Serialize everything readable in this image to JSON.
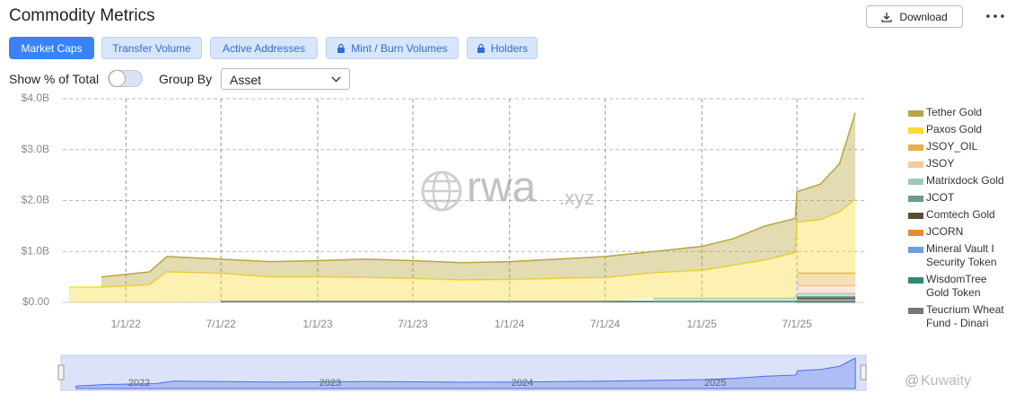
{
  "ui": {
    "title": "Commodity Metrics",
    "download": "Download",
    "tabs": [
      "Market Caps",
      "Transfer Volume",
      "Active Addresses",
      "Mint / Burn Volumes",
      "Holders"
    ],
    "show_pct": "Show % of Total",
    "group_by": "Group By",
    "group_value": "Asset",
    "watermark": [
      "rwa",
      ".xyz"
    ],
    "navigator_labels": [
      "2022",
      "2023",
      "2024",
      "2025"
    ],
    "credit": "Kuwaity"
  },
  "chart_data": {
    "type": "stacked-area",
    "x": [
      "2021-09-15",
      "2021-11-15",
      "2022-01-01",
      "2022-02-15",
      "2022-03-20",
      "2022-07-01",
      "2022-10-01",
      "2023-01-01",
      "2023-04-01",
      "2023-07-01",
      "2023-10-01",
      "2024-01-01",
      "2024-04-01",
      "2024-07-01",
      "2024-10-01",
      "2025-01-01",
      "2025-03-01",
      "2025-05-01",
      "2025-06-28",
      "2025-07-01",
      "2025-08-15",
      "2025-09-20",
      "2025-10-20"
    ],
    "xlim": [
      "2021-09-03",
      "2025-11-06"
    ],
    "xticks": [
      {
        "value": "2022-01-01",
        "label": "1/1/22"
      },
      {
        "value": "2022-07-01",
        "label": "7/1/22"
      },
      {
        "value": "2023-01-01",
        "label": "1/1/23"
      },
      {
        "value": "2023-07-01",
        "label": "7/1/23"
      },
      {
        "value": "2024-01-01",
        "label": "1/1/24"
      },
      {
        "value": "2024-07-01",
        "label": "7/1/24"
      },
      {
        "value": "2025-01-01",
        "label": "1/1/25"
      },
      {
        "value": "2025-07-01",
        "label": "7/1/25"
      }
    ],
    "ylim": [
      0,
      4000000000.0
    ],
    "yticks": [
      {
        "value": 0,
        "label": "$0.00"
      },
      {
        "value": 1000000000.0,
        "label": "$1.0B"
      },
      {
        "value": 2000000000.0,
        "label": "$2.0B"
      },
      {
        "value": 3000000000.0,
        "label": "$3.0B"
      },
      {
        "value": 4000000000.0,
        "label": "$4.0B"
      }
    ],
    "grid": true,
    "series": [
      {
        "name": "Tether Gold",
        "color": "#b8a63e",
        "values": [
          null,
          200000000.0,
          230000000.0,
          250000000.0,
          300000000.0,
          280000000.0,
          300000000.0,
          320000000.0,
          360000000.0,
          350000000.0,
          340000000.0,
          350000000.0,
          380000000.0,
          410000000.0,
          420000000.0,
          470000000.0,
          520000000.0,
          670000000.0,
          670000000.0,
          600000000.0,
          700000000.0,
          950000000.0,
          1700000000.0
        ]
      },
      {
        "name": "Paxos Gold",
        "color": "#f7dc3c",
        "values": [
          300000000.0,
          300000000.0,
          320000000.0,
          350000000.0,
          600000000.0,
          550000000.0,
          480000000.0,
          480000000.0,
          470000000.0,
          450000000.0,
          420000000.0,
          430000000.0,
          450000000.0,
          470000000.0,
          500000000.0,
          550000000.0,
          650000000.0,
          750000000.0,
          900000000.0,
          1000000000.0,
          1050000000.0,
          1200000000.0,
          1450000000.0
        ]
      },
      {
        "name": "JSOY_OIL",
        "color": "#e3b04b",
        "values": [
          null,
          null,
          null,
          null,
          null,
          null,
          null,
          null,
          null,
          null,
          null,
          null,
          null,
          null,
          null,
          null,
          null,
          null,
          null,
          250000000.0,
          250000000.0,
          250000000.0,
          250000000.0
        ]
      },
      {
        "name": "JSOY",
        "color": "#f6c99a",
        "values": [
          null,
          null,
          null,
          null,
          null,
          null,
          null,
          null,
          null,
          null,
          null,
          null,
          null,
          null,
          null,
          null,
          null,
          null,
          null,
          150000000.0,
          150000000.0,
          150000000.0,
          150000000.0
        ]
      },
      {
        "name": "Matrixdock Gold",
        "color": "#9ec7c0",
        "values": [
          null,
          null,
          null,
          null,
          null,
          null,
          null,
          null,
          null,
          null,
          null,
          null,
          null,
          null,
          60000000.0,
          60000000.0,
          60000000.0,
          60000000.0,
          60000000.0,
          60000000.0,
          60000000.0,
          60000000.0,
          60000000.0
        ]
      },
      {
        "name": "JCOT",
        "color": "#6e9c8e",
        "values": [
          null,
          null,
          null,
          null,
          null,
          null,
          null,
          null,
          null,
          null,
          null,
          null,
          null,
          null,
          null,
          null,
          null,
          null,
          null,
          30000000.0,
          30000000.0,
          30000000.0,
          30000000.0
        ]
      },
      {
        "name": "Comtech Gold",
        "color": "#5c4a32",
        "values": [
          null,
          null,
          null,
          null,
          null,
          null,
          null,
          null,
          null,
          null,
          null,
          null,
          null,
          null,
          null,
          null,
          null,
          null,
          null,
          20000000.0,
          20000000.0,
          20000000.0,
          20000000.0
        ]
      },
      {
        "name": "JCORN",
        "color": "#e88a2e",
        "values": [
          null,
          null,
          null,
          null,
          null,
          null,
          null,
          null,
          null,
          null,
          null,
          null,
          null,
          null,
          null,
          null,
          null,
          null,
          null,
          30000000.0,
          30000000.0,
          30000000.0,
          30000000.0
        ]
      },
      {
        "name": "Mineral Vault I Security Token",
        "color": "#6a9fd8",
        "values": [
          null,
          null,
          null,
          null,
          null,
          null,
          null,
          null,
          null,
          null,
          null,
          null,
          null,
          null,
          null,
          null,
          null,
          null,
          null,
          10000000.0,
          10000000.0,
          10000000.0,
          10000000.0
        ]
      },
      {
        "name": "WisdomTree Gold Token",
        "color": "#2e8b6e",
        "values": [
          null,
          null,
          null,
          null,
          null,
          20000000.0,
          20000000.0,
          20000000.0,
          20000000.0,
          20000000.0,
          20000000.0,
          20000000.0,
          20000000.0,
          20000000.0,
          20000000.0,
          20000000.0,
          20000000.0,
          20000000.0,
          20000000.0,
          20000000.0,
          20000000.0,
          20000000.0,
          20000000.0
        ]
      },
      {
        "name": "Teucrium Wheat Fund - Dinari",
        "color": "#777777",
        "values": [
          null,
          null,
          null,
          null,
          null,
          null,
          null,
          null,
          null,
          null,
          null,
          null,
          null,
          null,
          null,
          null,
          null,
          null,
          null,
          5000000.0,
          5000000.0,
          5000000.0,
          5000000.0
        ]
      }
    ]
  }
}
